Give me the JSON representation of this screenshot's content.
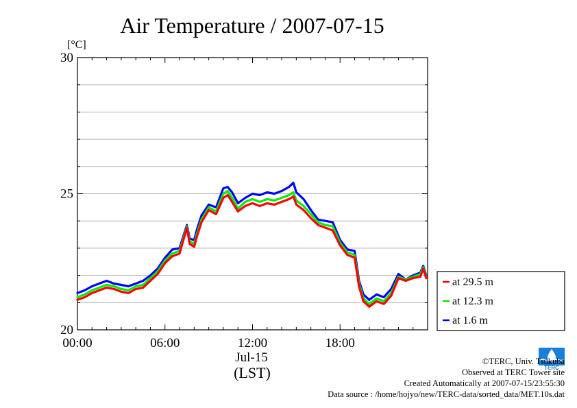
{
  "chart_data": {
    "type": "line",
    "title": "Air Temperature / 2007-07-15",
    "ylabel": "[°C]",
    "xlabel": "(LST)",
    "date_label": "Jul-15",
    "ylim": [
      20,
      30
    ],
    "yticks": [
      {
        "value": 20,
        "label": "20"
      },
      {
        "value": 25,
        "label": "25"
      },
      {
        "value": 30,
        "label": "30"
      }
    ],
    "xlim_hours": [
      0,
      24
    ],
    "xticks": [
      {
        "hour": 0,
        "label": "00:00"
      },
      {
        "hour": 6,
        "label": "06:00"
      },
      {
        "hour": 12,
        "label": "12:00"
      },
      {
        "hour": 18,
        "label": "18:00"
      }
    ],
    "grid": "horizontal",
    "legend_position": "right",
    "x_hours": [
      0,
      0.5,
      1,
      1.5,
      2,
      2.5,
      3,
      3.5,
      4,
      4.5,
      5,
      5.5,
      6,
      6.5,
      7,
      7.5,
      7.7,
      8,
      8.2,
      8.5,
      9,
      9.5,
      10,
      10.3,
      10.6,
      11,
      11.5,
      12,
      12.5,
      13,
      13.5,
      14,
      14.5,
      14.8,
      15,
      15.5,
      16,
      16.5,
      17,
      17.5,
      18,
      18.5,
      19,
      19.3,
      19.6,
      20,
      20.5,
      21,
      21.5,
      22,
      22.5,
      23,
      23.5,
      23.7,
      23.9
    ],
    "series": [
      {
        "name": "at 29.5 m",
        "color": "#ff0000",
        "values": [
          21.1,
          21.2,
          21.35,
          21.45,
          21.55,
          21.5,
          21.4,
          21.35,
          21.5,
          21.55,
          21.8,
          22.05,
          22.45,
          22.7,
          22.8,
          23.75,
          23.15,
          23.05,
          23.45,
          23.95,
          24.4,
          24.25,
          24.85,
          24.95,
          24.7,
          24.35,
          24.55,
          24.65,
          24.55,
          24.65,
          24.6,
          24.7,
          24.8,
          24.9,
          24.6,
          24.4,
          24.1,
          23.85,
          23.75,
          23.65,
          23.1,
          22.75,
          22.65,
          21.6,
          21.05,
          20.85,
          21.05,
          20.95,
          21.25,
          21.9,
          21.8,
          21.9,
          21.95,
          22.25,
          21.9
        ]
      },
      {
        "name": "at 12.3 m",
        "color": "#00ee00",
        "values": [
          21.2,
          21.3,
          21.45,
          21.55,
          21.65,
          21.6,
          21.5,
          21.45,
          21.6,
          21.65,
          21.9,
          22.15,
          22.55,
          22.8,
          22.9,
          23.8,
          23.25,
          23.15,
          23.55,
          24.05,
          24.5,
          24.35,
          25,
          25.1,
          24.85,
          24.45,
          24.7,
          24.8,
          24.7,
          24.8,
          24.75,
          24.85,
          24.95,
          25.05,
          24.75,
          24.55,
          24.25,
          23.95,
          23.85,
          23.8,
          23.2,
          22.85,
          22.75,
          21.7,
          21.15,
          20.95,
          21.15,
          21.05,
          21.35,
          21.95,
          21.85,
          21.95,
          22.05,
          22.3,
          21.95
        ]
      },
      {
        "name": "at 1.6 m",
        "color": "#0000ff",
        "values": [
          21.35,
          21.45,
          21.6,
          21.7,
          21.8,
          21.7,
          21.65,
          21.6,
          21.7,
          21.8,
          22,
          22.25,
          22.65,
          22.95,
          23,
          23.85,
          23.35,
          23.3,
          23.7,
          24.2,
          24.6,
          24.5,
          25.2,
          25.25,
          25.05,
          24.65,
          24.85,
          25,
          24.95,
          25.05,
          25,
          25.1,
          25.25,
          25.4,
          25.05,
          24.8,
          24.4,
          24.05,
          24,
          23.95,
          23.3,
          22.95,
          22.9,
          21.8,
          21.3,
          21.1,
          21.3,
          21.2,
          21.5,
          22.05,
          21.85,
          22,
          22.1,
          22.35,
          22
        ]
      }
    ]
  },
  "footer": {
    "copyright": "©TERC, Univ. Tsukuba",
    "observed": "Observed at TERC Tower site",
    "created": "Created Automatically at 2007-07-15/23:55:30",
    "source": "Data source : /home/hojyo/new/TERC-data/sorted_data/MET.10s.dat"
  },
  "logo": {
    "icon": "terc-logo-icon",
    "text": "TERC",
    "color": "#1a7fd6"
  }
}
